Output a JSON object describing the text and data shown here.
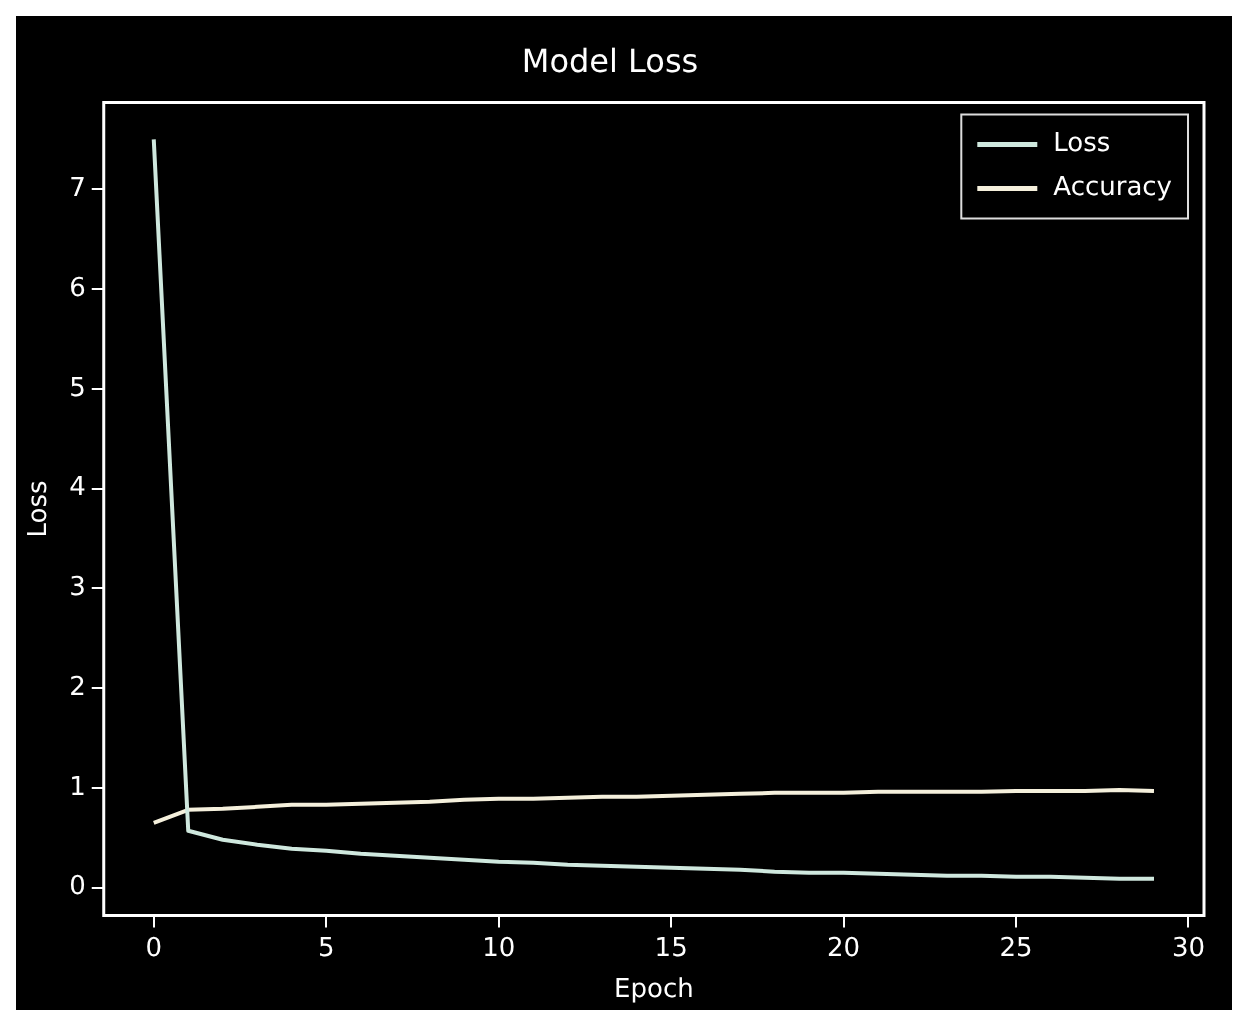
{
  "chart_data": {
    "type": "line",
    "title": "Model Loss",
    "xlabel": "Epoch",
    "ylabel": "Loss",
    "x": [
      0,
      1,
      2,
      3,
      4,
      5,
      6,
      7,
      8,
      9,
      10,
      11,
      12,
      13,
      14,
      15,
      16,
      17,
      18,
      19,
      20,
      21,
      22,
      23,
      24,
      25,
      26,
      27,
      28,
      29
    ],
    "series": [
      {
        "name": "Loss",
        "color": "#cfe8de",
        "values": [
          7.5,
          0.57,
          0.48,
          0.43,
          0.39,
          0.37,
          0.34,
          0.32,
          0.3,
          0.28,
          0.26,
          0.25,
          0.23,
          0.22,
          0.21,
          0.2,
          0.19,
          0.18,
          0.16,
          0.15,
          0.15,
          0.14,
          0.13,
          0.12,
          0.12,
          0.11,
          0.11,
          0.1,
          0.09,
          0.09
        ]
      },
      {
        "name": "Accuracy",
        "color": "#f5f0dc",
        "values": [
          0.65,
          0.78,
          0.79,
          0.81,
          0.83,
          0.83,
          0.84,
          0.85,
          0.86,
          0.88,
          0.89,
          0.89,
          0.9,
          0.91,
          0.91,
          0.92,
          0.93,
          0.94,
          0.95,
          0.95,
          0.95,
          0.96,
          0.96,
          0.96,
          0.96,
          0.97,
          0.97,
          0.97,
          0.98,
          0.97
        ]
      }
    ],
    "xlim": [
      -1.45,
      30.45
    ],
    "xticks": [
      0,
      5,
      10,
      15,
      20,
      25,
      30
    ],
    "ylim": [
      -0.28,
      7.87
    ],
    "yticks": [
      0,
      1,
      2,
      3,
      4,
      5,
      6,
      7
    ],
    "grid": false,
    "legend": "top right",
    "marker": "none",
    "line_style": "solid"
  }
}
